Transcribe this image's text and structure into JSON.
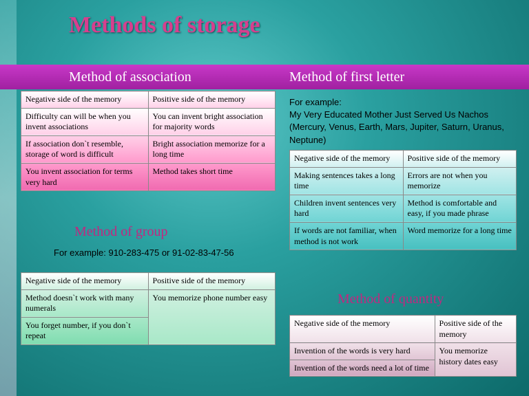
{
  "title": "Methods of storage",
  "header": {
    "assoc": "Method of association",
    "letter": "Method of first letter"
  },
  "labels": {
    "group": "Method of group",
    "quantity": "Method of quantity"
  },
  "examples": {
    "group": "For example: 910-283-475 or 91-02-83-47-56",
    "letter": "For example:\nMy Very Educated Mother Just Served Us Nachos (Mercury, Venus, Earth, Mars, Jupiter, Saturn, Uranus, Neptune)"
  },
  "tables": {
    "pink": {
      "rows": [
        [
          "Negative side of the memory",
          "Positive side of the memory"
        ],
        [
          "Difficulty can will be when you invent associations",
          "You can invent bright association for majority words"
        ],
        [
          "If association don`t resemble, storage of word is difficult",
          "Bright association memorize for a long time"
        ],
        [
          "You invent association for terms very hard",
          "Method takes short time"
        ]
      ]
    },
    "cyan": {
      "rows": [
        [
          "Negative side of the memory",
          "Positive side of the memory"
        ],
        [
          "Making sentences takes a long time",
          "Errors are not when you memorize"
        ],
        [
          "Children invent sentences very hard",
          "Method is comfortable and easy, if you made phrase"
        ],
        [
          "If words are not familiar, when method is not work",
          "Word memorize for a long time"
        ]
      ]
    },
    "green": {
      "rows": [
        [
          "Negative side of the memory",
          "Positive side of the memory"
        ],
        [
          "Method doesn`t work with many numerals",
          "You memorize phone number easy"
        ],
        [
          "You forget number, if you don`t repeat",
          ""
        ]
      ]
    },
    "mauve": {
      "rows": [
        [
          "Negative side of the memory",
          "Positive side of the memory"
        ],
        [
          "Invention of the words is very hard",
          "You memorize history dates easy"
        ],
        [
          "Invention of the words need a lot of time",
          ""
        ]
      ]
    }
  }
}
